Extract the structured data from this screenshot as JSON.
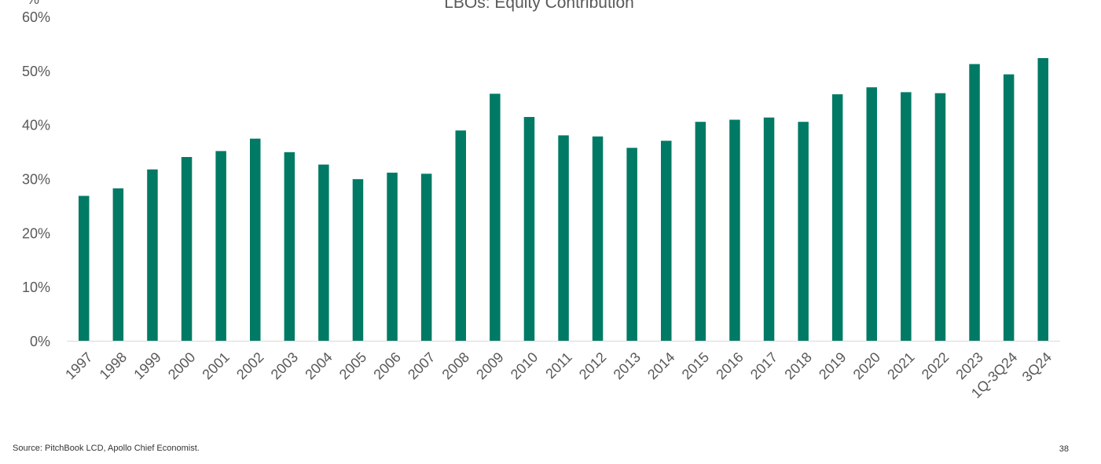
{
  "chart_data": {
    "type": "bar",
    "title": "LBOs: Equity Contribution",
    "ylabel": "%",
    "xlabel": "",
    "categories": [
      "1997",
      "1998",
      "1999",
      "2000",
      "2001",
      "2002",
      "2003",
      "2004",
      "2005",
      "2006",
      "2007",
      "2008",
      "2009",
      "2010",
      "2011",
      "2012",
      "2013",
      "2014",
      "2015",
      "2016",
      "2017",
      "2018",
      "2019",
      "2020",
      "2021",
      "2022",
      "2023",
      "1Q-3Q24",
      "3Q24"
    ],
    "series": [
      {
        "values": [
          26.8,
          28.2,
          31.7,
          34.0,
          35.1,
          37.4,
          34.9,
          32.6,
          29.9,
          31.1,
          30.9,
          38.9,
          45.7,
          41.4,
          38.0,
          37.8,
          35.7,
          37.0,
          40.5,
          40.9,
          41.3,
          40.5,
          45.6,
          46.9,
          46.0,
          45.8,
          51.2,
          49.3,
          52.3
        ]
      }
    ],
    "ylim": [
      0,
      60
    ],
    "yticks": [
      0,
      10,
      20,
      30,
      40,
      50,
      60
    ],
    "ytick_labels": [
      "0%",
      "10%",
      "20%",
      "30%",
      "40%",
      "50%",
      "60%"
    ],
    "grid": false,
    "legend": "none",
    "bar_color": "#007A64"
  },
  "footer": {
    "source": "Source: PitchBook LCD, Apollo Chief Economist.",
    "page_number": "38"
  }
}
